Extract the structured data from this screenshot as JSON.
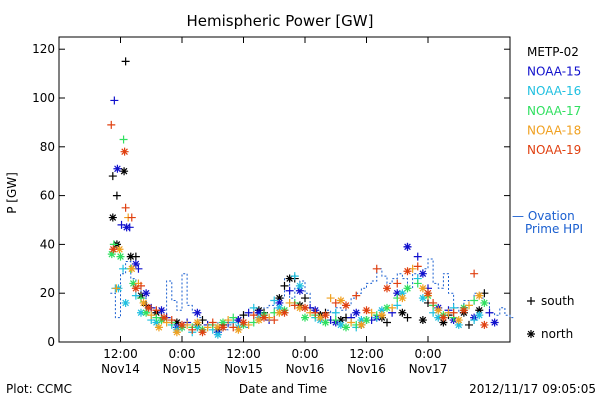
{
  "chart_data": {
    "type": "scatter",
    "title": "Hemispheric Power [GW]",
    "ylabel": "P [GW]",
    "xlabel": "Date and Time",
    "ylim": [
      0,
      125
    ],
    "yticks": [
      0,
      20,
      40,
      60,
      80,
      100,
      120
    ],
    "xlim_hours": [
      0,
      88
    ],
    "xticks": [
      {
        "hour": 12,
        "line1": "12:00",
        "line2": "Nov14"
      },
      {
        "hour": 24,
        "line1": "0:00",
        "line2": "Nov15"
      },
      {
        "hour": 36,
        "line1": "12:00",
        "line2": "Nov15"
      },
      {
        "hour": 48,
        "line1": "0:00",
        "line2": "Nov16"
      },
      {
        "hour": 60,
        "line1": "12:00",
        "line2": "Nov16"
      },
      {
        "hour": 72,
        "line1": "0:00",
        "line2": "Nov17"
      }
    ],
    "grid": false,
    "legend_position": "right",
    "series": [
      {
        "name": "METP-02",
        "color": "#000000",
        "south": [
          [
            10.5,
            68
          ],
          [
            11.3,
            60
          ],
          [
            13,
            115
          ],
          [
            15,
            35
          ],
          [
            17,
            15
          ],
          [
            20,
            10
          ],
          [
            24,
            6
          ],
          [
            28,
            9
          ],
          [
            32,
            7
          ],
          [
            36,
            11
          ],
          [
            40,
            12
          ],
          [
            44,
            23
          ],
          [
            46,
            26
          ],
          [
            48,
            18
          ],
          [
            52,
            12
          ],
          [
            56,
            10
          ],
          [
            60,
            9
          ],
          [
            64,
            8
          ],
          [
            68,
            10
          ],
          [
            72,
            16
          ],
          [
            76,
            11
          ],
          [
            80,
            7
          ],
          [
            83,
            20
          ]
        ],
        "north": [
          [
            10.5,
            51
          ],
          [
            11.3,
            40
          ],
          [
            12.7,
            70
          ],
          [
            14,
            35
          ],
          [
            16,
            19
          ],
          [
            19,
            12
          ],
          [
            23,
            8
          ],
          [
            27,
            7
          ],
          [
            31,
            5
          ],
          [
            35,
            9
          ],
          [
            39,
            13
          ],
          [
            43,
            18
          ],
          [
            45,
            26
          ],
          [
            47,
            15
          ],
          [
            51,
            11
          ],
          [
            55,
            9
          ],
          [
            59,
            7
          ],
          [
            63,
            10
          ],
          [
            67,
            12
          ],
          [
            71,
            9
          ],
          [
            75,
            8
          ],
          [
            79,
            12
          ],
          [
            82,
            13
          ]
        ]
      },
      {
        "name": "NOAA-15",
        "color": "#1010cc",
        "south": [
          [
            10.8,
            99
          ],
          [
            12.2,
            48
          ],
          [
            13.8,
            47
          ],
          [
            15.5,
            30
          ],
          [
            18,
            14
          ],
          [
            21,
            10
          ],
          [
            25,
            8
          ],
          [
            29,
            7
          ],
          [
            33,
            8
          ],
          [
            37,
            12
          ],
          [
            41,
            9
          ],
          [
            45,
            21
          ],
          [
            49,
            14
          ],
          [
            53,
            9
          ],
          [
            57,
            10
          ],
          [
            61,
            9
          ],
          [
            65,
            12
          ],
          [
            68,
            39
          ],
          [
            70,
            35
          ],
          [
            72,
            22
          ],
          [
            76,
            13
          ],
          [
            79,
            14
          ],
          [
            84,
            12
          ]
        ],
        "north": [
          [
            11.4,
            71
          ],
          [
            13.2,
            47
          ],
          [
            15,
            32
          ],
          [
            17,
            20
          ],
          [
            20,
            13
          ],
          [
            23,
            6
          ],
          [
            27,
            12
          ],
          [
            31,
            4
          ],
          [
            35,
            9
          ],
          [
            39,
            12
          ],
          [
            43,
            16
          ],
          [
            47,
            21
          ],
          [
            50,
            13
          ],
          [
            54,
            8
          ],
          [
            58,
            12
          ],
          [
            62,
            10
          ],
          [
            66,
            20
          ],
          [
            68,
            39
          ],
          [
            71,
            28
          ],
          [
            74,
            14
          ],
          [
            77,
            9
          ],
          [
            81,
            10
          ],
          [
            85,
            8
          ]
        ]
      },
      {
        "name": "NOAA-16",
        "color": "#20c0e0",
        "south": [
          [
            11,
            22
          ],
          [
            12.5,
            30
          ],
          [
            15,
            19
          ],
          [
            18,
            9
          ],
          [
            22,
            7
          ],
          [
            26,
            4
          ],
          [
            30,
            5
          ],
          [
            34,
            8
          ],
          [
            38,
            14
          ],
          [
            42,
            17
          ],
          [
            46,
            27
          ],
          [
            50,
            10
          ],
          [
            54,
            12
          ],
          [
            58,
            6
          ],
          [
            62,
            10
          ],
          [
            66,
            15
          ],
          [
            70,
            26
          ],
          [
            73,
            12
          ],
          [
            77,
            14
          ],
          [
            81,
            9
          ]
        ],
        "north": [
          [
            11.6,
            22
          ],
          [
            13,
            16
          ],
          [
            16,
            12
          ],
          [
            19,
            8
          ],
          [
            23,
            5
          ],
          [
            27,
            6
          ],
          [
            31,
            3
          ],
          [
            35,
            6
          ],
          [
            39,
            10
          ],
          [
            43,
            14
          ],
          [
            47,
            23
          ],
          [
            51,
            9
          ],
          [
            55,
            7
          ],
          [
            59,
            9
          ],
          [
            63,
            13
          ],
          [
            67,
            20
          ],
          [
            71,
            18
          ],
          [
            74,
            10
          ],
          [
            78,
            7
          ],
          [
            82,
            11
          ]
        ]
      },
      {
        "name": "NOAA-17",
        "color": "#30e060",
        "south": [
          [
            10.7,
            40
          ],
          [
            12.6,
            83
          ],
          [
            14,
            30
          ],
          [
            16,
            18
          ],
          [
            19,
            10
          ],
          [
            22,
            8
          ],
          [
            26,
            6
          ],
          [
            30,
            7
          ],
          [
            34,
            10
          ],
          [
            38,
            8
          ],
          [
            42,
            12
          ],
          [
            46,
            16
          ],
          [
            50,
            11
          ],
          [
            54,
            9
          ],
          [
            58,
            7
          ],
          [
            62,
            11
          ],
          [
            66,
            18
          ],
          [
            70,
            24
          ],
          [
            73,
            15
          ],
          [
            77,
            10
          ],
          [
            81,
            17
          ]
        ],
        "north": [
          [
            10.3,
            36
          ],
          [
            12,
            35
          ],
          [
            14.5,
            24
          ],
          [
            17,
            12
          ],
          [
            20,
            9
          ],
          [
            24,
            6
          ],
          [
            28,
            5
          ],
          [
            32,
            8
          ],
          [
            36,
            7
          ],
          [
            40,
            11
          ],
          [
            44,
            13
          ],
          [
            48,
            10
          ],
          [
            52,
            8
          ],
          [
            56,
            6
          ],
          [
            60,
            9
          ],
          [
            64,
            14
          ],
          [
            68,
            22
          ],
          [
            72,
            19
          ],
          [
            75,
            11
          ],
          [
            79,
            14
          ],
          [
            83,
            16
          ]
        ]
      },
      {
        "name": "NOAA-18",
        "color": "#f0a020",
        "south": [
          [
            11.2,
            22
          ],
          [
            13.5,
            51
          ],
          [
            15.5,
            24
          ],
          [
            18,
            11
          ],
          [
            21,
            8
          ],
          [
            25,
            7
          ],
          [
            29,
            6
          ],
          [
            33,
            9
          ],
          [
            37,
            7
          ],
          [
            41,
            10
          ],
          [
            45,
            16
          ],
          [
            49,
            12
          ],
          [
            53,
            18
          ],
          [
            57,
            8
          ],
          [
            61,
            12
          ],
          [
            65,
            14
          ],
          [
            69,
            30
          ],
          [
            72,
            19
          ],
          [
            76,
            12
          ],
          [
            80,
            15
          ]
        ],
        "north": [
          [
            11.8,
            38
          ],
          [
            14.2,
            30
          ],
          [
            16.5,
            16
          ],
          [
            19.5,
            6
          ],
          [
            23,
            4
          ],
          [
            27,
            8
          ],
          [
            31,
            6
          ],
          [
            35,
            5
          ],
          [
            39,
            9
          ],
          [
            43,
            12
          ],
          [
            47,
            14
          ],
          [
            51,
            10
          ],
          [
            55,
            17
          ],
          [
            59,
            7
          ],
          [
            63,
            11
          ],
          [
            67,
            18
          ],
          [
            71,
            22
          ],
          [
            74,
            13
          ],
          [
            78,
            9
          ],
          [
            82,
            19
          ]
        ]
      },
      {
        "name": "NOAA-19",
        "color": "#e04010",
        "south": [
          [
            10.2,
            89
          ],
          [
            13,
            55
          ],
          [
            14.2,
            51
          ],
          [
            16,
            23
          ],
          [
            19,
            13
          ],
          [
            22,
            9
          ],
          [
            26,
            5
          ],
          [
            30,
            8
          ],
          [
            34,
            6
          ],
          [
            38,
            11
          ],
          [
            42,
            9
          ],
          [
            46,
            15
          ],
          [
            50,
            12
          ],
          [
            54,
            16
          ],
          [
            58,
            19
          ],
          [
            62,
            30
          ],
          [
            66,
            24
          ],
          [
            70,
            31
          ],
          [
            73,
            16
          ],
          [
            77,
            12
          ],
          [
            81,
            28
          ]
        ],
        "north": [
          [
            10.6,
            38
          ],
          [
            12.8,
            78
          ],
          [
            15,
            22
          ],
          [
            17.5,
            14
          ],
          [
            20.5,
            10
          ],
          [
            24,
            7
          ],
          [
            28,
            4
          ],
          [
            32,
            6
          ],
          [
            36,
            8
          ],
          [
            40,
            10
          ],
          [
            44,
            12
          ],
          [
            48,
            14
          ],
          [
            52,
            11
          ],
          [
            56,
            15
          ],
          [
            60,
            13
          ],
          [
            64,
            22
          ],
          [
            68,
            29
          ],
          [
            72,
            20
          ],
          [
            75,
            10
          ],
          [
            79,
            13
          ],
          [
            83,
            7
          ]
        ]
      }
    ],
    "ovation": {
      "name": "Ovation Prime HPI",
      "color": "#1a5fd0",
      "hours": [
        10,
        11,
        12,
        13,
        14,
        15,
        16,
        17,
        18,
        19,
        20,
        21,
        22,
        23,
        24,
        25,
        26,
        27,
        28,
        29,
        30,
        31,
        32,
        33,
        34,
        35,
        36,
        37,
        38,
        39,
        40,
        41,
        42,
        43,
        44,
        45,
        46,
        47,
        48,
        49,
        50,
        51,
        52,
        53,
        54,
        55,
        56,
        57,
        58,
        59,
        60,
        61,
        62,
        63,
        64,
        65,
        66,
        67,
        68,
        69,
        70,
        71,
        72,
        73,
        74,
        75,
        76,
        77,
        78,
        79,
        80,
        81,
        82,
        83,
        84,
        85,
        86,
        87,
        88
      ],
      "values": [
        20,
        10,
        28,
        33,
        26,
        22,
        18,
        15,
        14,
        12,
        10,
        25,
        17,
        13,
        28,
        15,
        12,
        10,
        9,
        7,
        8,
        6,
        5,
        7,
        8,
        7,
        6,
        8,
        10,
        12,
        14,
        15,
        12,
        18,
        26,
        18,
        22,
        25,
        20,
        14,
        12,
        11,
        13,
        12,
        14,
        13,
        15,
        18,
        20,
        22,
        24,
        25,
        30,
        27,
        24,
        26,
        28,
        26,
        22,
        28,
        27,
        30,
        34,
        24,
        22,
        28,
        20,
        14,
        12,
        17,
        15,
        20,
        18,
        16,
        12,
        11,
        14,
        11,
        10
      ]
    },
    "legend_symbols": [
      {
        "symbol": "+",
        "label": "south"
      },
      {
        "symbol": "*",
        "label": "north"
      }
    ]
  },
  "legend_ovation_line1": "— Ovation",
  "legend_ovation_line2": "Prime HPI",
  "footer": {
    "left": "Plot: CCMC",
    "right": "2012/11/17 09:05:05"
  }
}
